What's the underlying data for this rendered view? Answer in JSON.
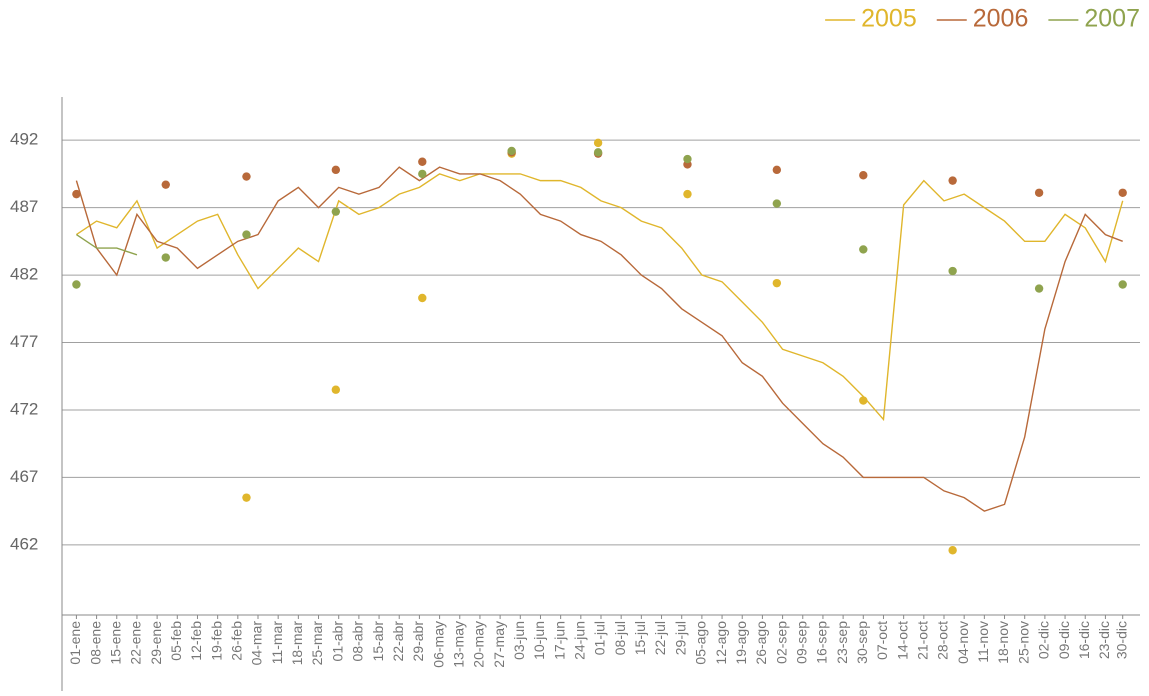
{
  "chart_data": {
    "type": "line",
    "series": [
      {
        "name": "2005",
        "color": "#e0b62c",
        "values": [
          485,
          486,
          485.5,
          487.5,
          484,
          485,
          486,
          486.5,
          483.5,
          481,
          482.5,
          484,
          483,
          487.5,
          486.5,
          487,
          488,
          488.5,
          489.5,
          489,
          489.5,
          489.5,
          489.5,
          489,
          489,
          488.5,
          487.5,
          487,
          486,
          485.5,
          484,
          482,
          481.5,
          480,
          478.5,
          476.5,
          476,
          475.5,
          474.5,
          473,
          471.3,
          487.2,
          489,
          487.5,
          488,
          487,
          486,
          484.5,
          484.5,
          486.5,
          485.5,
          483,
          487.5
        ],
        "dots": [
          null,
          null,
          465.5,
          473.5,
          480.3,
          491,
          491.8,
          488,
          481.4,
          472.7,
          461.6,
          null,
          null
        ]
      },
      {
        "name": "2006",
        "color": "#b8693a",
        "values": [
          489,
          484,
          482,
          486.5,
          484.5,
          484,
          482.5,
          483.5,
          484.5,
          485,
          487.5,
          488.5,
          487,
          488.5,
          488,
          488.5,
          490,
          489,
          490,
          489.5,
          489.5,
          489,
          488,
          486.5,
          486,
          485,
          484.5,
          483.5,
          482,
          481,
          479.5,
          478.5,
          477.5,
          475.5,
          474.5,
          472.5,
          471,
          469.5,
          468.5,
          467,
          467,
          467,
          467,
          466,
          465.5,
          464.5,
          465,
          470,
          478,
          483,
          486.5,
          485,
          484.5
        ],
        "dots": [
          488,
          488.7,
          489.3,
          489.8,
          490.4,
          491.1,
          491,
          490.2,
          489.8,
          489.4,
          489,
          488.1,
          488.1
        ]
      },
      {
        "name": "2007",
        "color": "#8fa34e",
        "values": [
          485,
          484,
          484,
          483.5,
          null,
          null,
          null,
          null,
          null,
          null,
          null,
          null,
          null,
          null,
          null,
          null,
          null,
          null,
          null,
          null,
          null,
          null,
          null,
          null,
          null,
          null,
          null,
          null,
          null,
          null,
          null,
          null,
          null,
          null,
          null,
          null,
          null,
          null,
          null,
          null,
          null,
          null,
          null,
          null,
          null,
          null,
          null,
          null,
          null,
          null,
          null,
          null,
          null
        ],
        "dots": [
          481.3,
          483.3,
          485,
          486.7,
          489.5,
          491.2,
          491.1,
          490.6,
          487.3,
          483.9,
          482.3,
          481,
          481.3
        ]
      }
    ],
    "x": [
      1,
      8,
      15,
      22,
      29,
      36,
      43,
      50,
      57,
      64,
      71,
      78,
      85,
      92,
      99,
      106,
      113,
      120,
      127,
      134,
      141,
      148,
      155,
      162,
      169,
      176,
      183,
      190,
      197,
      204,
      211,
      218,
      225,
      232,
      239,
      246,
      253,
      260,
      267,
      274,
      281,
      288,
      295,
      302,
      309,
      316,
      323,
      330,
      337,
      344,
      351,
      358,
      364
    ],
    "dot_x": [
      1,
      32,
      60,
      91,
      121,
      152,
      182,
      213,
      244,
      274,
      305,
      335,
      364
    ],
    "xlim": [
      -4,
      370
    ],
    "xticks": [
      {
        "value": 1,
        "label": "01-ene"
      },
      {
        "value": 8,
        "label": "08-ene"
      },
      {
        "value": 15,
        "label": "15-ene"
      },
      {
        "value": 22,
        "label": "22-ene"
      },
      {
        "value": 29,
        "label": "29-ene"
      },
      {
        "value": 36,
        "label": "05-feb"
      },
      {
        "value": 43,
        "label": "12-feb"
      },
      {
        "value": 50,
        "label": "19-feb"
      },
      {
        "value": 57,
        "label": "26-feb"
      },
      {
        "value": 64,
        "label": "04-mar"
      },
      {
        "value": 71,
        "label": "11-mar"
      },
      {
        "value": 78,
        "label": "18-mar"
      },
      {
        "value": 85,
        "label": "25-mar"
      },
      {
        "value": 92,
        "label": "01-abr"
      },
      {
        "value": 99,
        "label": "08-abr"
      },
      {
        "value": 106,
        "label": "15-abr"
      },
      {
        "value": 113,
        "label": "22-abr"
      },
      {
        "value": 120,
        "label": "29-abr"
      },
      {
        "value": 127,
        "label": "06-may"
      },
      {
        "value": 134,
        "label": "13-may"
      },
      {
        "value": 141,
        "label": "20-may"
      },
      {
        "value": 148,
        "label": "27-may"
      },
      {
        "value": 155,
        "label": "03-jun"
      },
      {
        "value": 162,
        "label": "10-jun"
      },
      {
        "value": 169,
        "label": "17-jun"
      },
      {
        "value": 176,
        "label": "24-jun"
      },
      {
        "value": 183,
        "label": "01-jul"
      },
      {
        "value": 190,
        "label": "08-jul"
      },
      {
        "value": 197,
        "label": "15-jul"
      },
      {
        "value": 204,
        "label": "22-jul"
      },
      {
        "value": 211,
        "label": "29-jul"
      },
      {
        "value": 218,
        "label": "05-ago"
      },
      {
        "value": 225,
        "label": "12-ago"
      },
      {
        "value": 232,
        "label": "19-ago"
      },
      {
        "value": 239,
        "label": "26-ago"
      },
      {
        "value": 246,
        "label": "02-sep"
      },
      {
        "value": 253,
        "label": "09-sep"
      },
      {
        "value": 260,
        "label": "16-sep"
      },
      {
        "value": 267,
        "label": "23-sep"
      },
      {
        "value": 274,
        "label": "30-sep"
      },
      {
        "value": 281,
        "label": "07-oct"
      },
      {
        "value": 288,
        "label": "14-oct"
      },
      {
        "value": 295,
        "label": "21-oct"
      },
      {
        "value": 302,
        "label": "28-oct"
      },
      {
        "value": 309,
        "label": "04-nov"
      },
      {
        "value": 316,
        "label": "11-nov"
      },
      {
        "value": 323,
        "label": "18-nov"
      },
      {
        "value": 330,
        "label": "25-nov"
      },
      {
        "value": 337,
        "label": "02-dic"
      },
      {
        "value": 344,
        "label": "09-dic"
      },
      {
        "value": 351,
        "label": "16-dic"
      },
      {
        "value": 358,
        "label": "23-dic"
      },
      {
        "value": 364,
        "label": "30-dic"
      }
    ],
    "ylim": [
      456.8,
      495.2
    ],
    "yticks": [
      462,
      467,
      472,
      477,
      482,
      487,
      492
    ],
    "grid": true,
    "legend": "top-right"
  }
}
